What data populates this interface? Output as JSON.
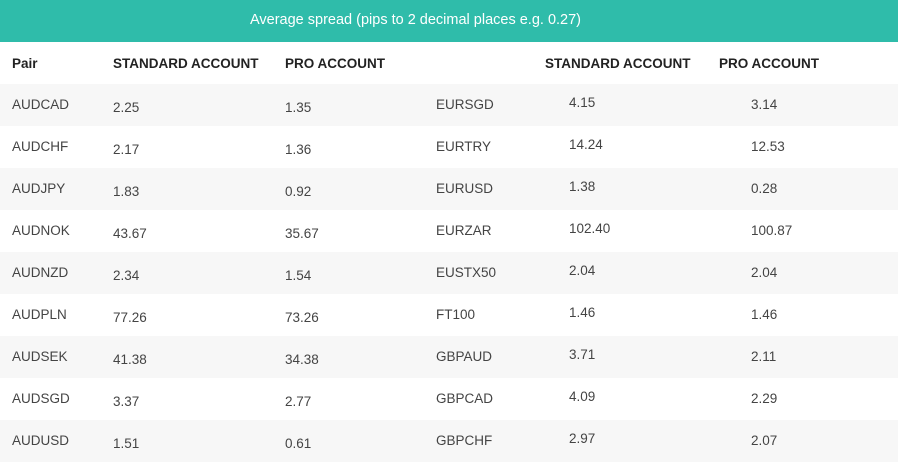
{
  "banner": {
    "title": "Average spread (pips to 2 decimal places e.g. 0.27)"
  },
  "colors": {
    "banner_bg": "#2fbcaa",
    "row_shade": "#f7f7f7"
  },
  "table": {
    "headers": [
      "Pair",
      "STANDARD ACCOUNT",
      "PRO ACCOUNT",
      "",
      "STANDARD ACCOUNT",
      "PRO ACCOUNT"
    ],
    "rows": [
      [
        "AUDCAD",
        "2.25",
        "1.35",
        "EURSGD",
        "4.15",
        "3.14"
      ],
      [
        "AUDCHF",
        "2.17",
        "1.36",
        "EURTRY",
        "14.24",
        "12.53"
      ],
      [
        "AUDJPY",
        "1.83",
        "0.92",
        "EURUSD",
        "1.38",
        "0.28"
      ],
      [
        "AUDNOK",
        "43.67",
        "35.67",
        "EURZAR",
        "102.40",
        "100.87"
      ],
      [
        "AUDNZD",
        "2.34",
        "1.54",
        "EUSTX50",
        "2.04",
        "2.04"
      ],
      [
        "AUDPLN",
        "77.26",
        "73.26",
        "FT100",
        "1.46",
        "1.46"
      ],
      [
        "AUDSEK",
        "41.38",
        "34.38",
        "GBPAUD",
        "3.71",
        "2.11"
      ],
      [
        "AUDSGD",
        "3.37",
        "2.77",
        "GBPCAD",
        "4.09",
        "2.29"
      ],
      [
        "AUDUSD",
        "1.51",
        "0.61",
        "GBPCHF",
        "2.97",
        "2.07"
      ]
    ]
  }
}
